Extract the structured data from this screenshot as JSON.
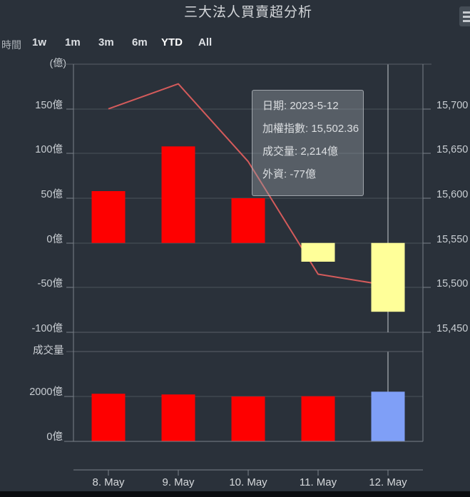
{
  "title": "三大法人買賣超分析",
  "range_selector": {
    "label": "時間",
    "selected": "YTD",
    "buttons": [
      {
        "label": "1w"
      },
      {
        "label": "1m"
      },
      {
        "label": "3m"
      },
      {
        "label": "6m"
      },
      {
        "label": "YTD"
      },
      {
        "label": "All"
      }
    ]
  },
  "main_chart": {
    "unit_label": "(億)"
  },
  "volume_chart": {
    "title": "成交量"
  },
  "x_axis": {
    "labels": [
      "8. May",
      "9. May",
      "10. May",
      "11. May",
      "12. May"
    ]
  },
  "crosshair": {
    "active_category": "12. May",
    "index": 4
  },
  "tooltip": {
    "date": "日期: 2023-5-12",
    "index": "加權指數: 15,502.36",
    "volume": "成交量: 2,214億",
    "foreign": "外資: -77億"
  },
  "colors": {
    "background": "#2a313a",
    "buy_red": "#fe0000",
    "sell_yellow": "#ffff99",
    "volume_blue": "#7f9ff7",
    "index_line": "#d45b5b",
    "crosshair": "#c7cbd0"
  },
  "chart_data": [
    {
      "id": "foreign_net",
      "type": "bar",
      "title": "外資買賣超",
      "categories": [
        "8. May",
        "9. May",
        "10. May",
        "11. May",
        "12. May"
      ],
      "values": [
        58,
        108,
        50,
        -21,
        -77
      ],
      "unit": "億",
      "bar_colors": [
        "#fe0000",
        "#fe0000",
        "#fe0000",
        "#ffff99",
        "#ffff99"
      ],
      "yaxis": "left",
      "ylim": [
        -100,
        200
      ],
      "grid": true,
      "yticks": [
        {
          "value": 150,
          "label": "150億"
        },
        {
          "value": 100,
          "label": "100億"
        },
        {
          "value": 50,
          "label": "50億"
        },
        {
          "value": 0,
          "label": "0億"
        },
        {
          "value": -50,
          "label": "-50億"
        },
        {
          "value": -100,
          "label": "-100億"
        }
      ]
    },
    {
      "id": "weighted_index",
      "type": "line",
      "title": "加權指數",
      "categories": [
        "8. May",
        "9. May",
        "10. May",
        "11. May",
        "12. May"
      ],
      "values": [
        15700,
        15728,
        15641,
        15515,
        15502.36
      ],
      "color": "#d45b5b",
      "yaxis": "right",
      "ylim": [
        15450,
        15750
      ],
      "yticks": [
        {
          "value": 15700,
          "label": "15,700"
        },
        {
          "value": 15650,
          "label": "15,650"
        },
        {
          "value": 15600,
          "label": "15,600"
        },
        {
          "value": 15550,
          "label": "15,550"
        },
        {
          "value": 15500,
          "label": "15,500"
        },
        {
          "value": 15450,
          "label": "15,450"
        }
      ]
    },
    {
      "id": "volume",
      "type": "bar",
      "title": "成交量",
      "categories": [
        "8. May",
        "9. May",
        "10. May",
        "11. May",
        "12. May"
      ],
      "values": [
        2120,
        2090,
        2000,
        2010,
        2214
      ],
      "unit": "億",
      "bar_colors": [
        "#fe0000",
        "#fe0000",
        "#fe0000",
        "#fe0000",
        "#7f9ff7"
      ],
      "ylim": [
        0,
        4000
      ],
      "yticks": [
        {
          "value": 2000,
          "label": "2000億"
        },
        {
          "value": 0,
          "label": "0億"
        }
      ]
    }
  ]
}
